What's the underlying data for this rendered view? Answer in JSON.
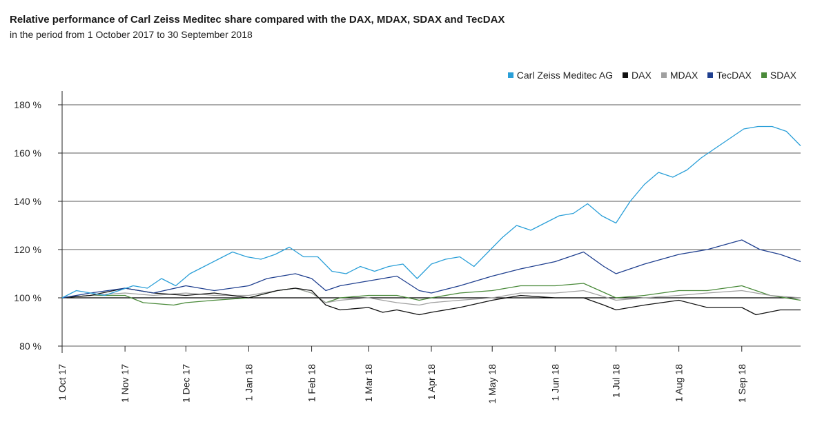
{
  "chart_data": {
    "type": "line",
    "title": "Relative performance of Carl Zeiss Meditec share compared with the DAX, MDAX, SDAX and TecDAX",
    "subtitle": "in the period from 1 October 2017 to 30 September 2018",
    "xlabel": "",
    "ylabel": "",
    "x_range": [
      "2017-10-01",
      "2018-09-30"
    ],
    "x_ticks": [
      {
        "date": "2017-10-01",
        "label": "1 Oct 17"
      },
      {
        "date": "2017-11-01",
        "label": "1 Nov 17"
      },
      {
        "date": "2017-12-01",
        "label": "1 Dec 17"
      },
      {
        "date": "2018-01-01",
        "label": "1 Jan 18"
      },
      {
        "date": "2018-02-01",
        "label": "1 Feb 18"
      },
      {
        "date": "2018-03-01",
        "label": "1 Mar 18"
      },
      {
        "date": "2018-04-01",
        "label": "1 Apr 18"
      },
      {
        "date": "2018-05-01",
        "label": "1 May 18"
      },
      {
        "date": "2018-06-01",
        "label": "1 Jun 18"
      },
      {
        "date": "2018-07-01",
        "label": "1 Jul 18"
      },
      {
        "date": "2018-08-01",
        "label": "1 Aug 18"
      },
      {
        "date": "2018-09-01",
        "label": "1 Sep 18"
      }
    ],
    "ylim": [
      80,
      180
    ],
    "y_ticks": [
      {
        "value": 80,
        "label": "80 %"
      },
      {
        "value": 100,
        "label": "100 %"
      },
      {
        "value": 120,
        "label": "120 %"
      },
      {
        "value": 140,
        "label": "140 %"
      },
      {
        "value": 160,
        "label": "160 %"
      },
      {
        "value": 180,
        "label": "180 %"
      }
    ],
    "grid": "horizontal",
    "legend_position": "top-right",
    "series": [
      {
        "name": "Carl Zeiss Meditec AG",
        "color": "#2a9fd8",
        "points": [
          [
            "2017-10-01",
            100
          ],
          [
            "2017-10-08",
            103
          ],
          [
            "2017-10-15",
            102
          ],
          [
            "2017-10-22",
            101
          ],
          [
            "2017-10-29",
            103
          ],
          [
            "2017-11-05",
            105
          ],
          [
            "2017-11-12",
            104
          ],
          [
            "2017-11-19",
            108
          ],
          [
            "2017-11-26",
            105
          ],
          [
            "2017-12-03",
            110
          ],
          [
            "2017-12-10",
            113
          ],
          [
            "2017-12-17",
            116
          ],
          [
            "2017-12-24",
            119
          ],
          [
            "2017-12-31",
            117
          ],
          [
            "2018-01-07",
            116
          ],
          [
            "2018-01-14",
            118
          ],
          [
            "2018-01-21",
            121
          ],
          [
            "2018-01-28",
            117
          ],
          [
            "2018-02-04",
            117
          ],
          [
            "2018-02-11",
            111
          ],
          [
            "2018-02-18",
            110
          ],
          [
            "2018-02-25",
            113
          ],
          [
            "2018-03-04",
            111
          ],
          [
            "2018-03-11",
            113
          ],
          [
            "2018-03-18",
            114
          ],
          [
            "2018-03-25",
            108
          ],
          [
            "2018-04-01",
            114
          ],
          [
            "2018-04-08",
            116
          ],
          [
            "2018-04-15",
            117
          ],
          [
            "2018-04-22",
            113
          ],
          [
            "2018-04-29",
            119
          ],
          [
            "2018-05-06",
            125
          ],
          [
            "2018-05-13",
            130
          ],
          [
            "2018-05-20",
            128
          ],
          [
            "2018-05-27",
            131
          ],
          [
            "2018-06-03",
            134
          ],
          [
            "2018-06-10",
            135
          ],
          [
            "2018-06-17",
            139
          ],
          [
            "2018-06-24",
            134
          ],
          [
            "2018-07-01",
            131
          ],
          [
            "2018-07-08",
            140
          ],
          [
            "2018-07-15",
            147
          ],
          [
            "2018-07-22",
            152
          ],
          [
            "2018-07-29",
            150
          ],
          [
            "2018-08-05",
            153
          ],
          [
            "2018-08-12",
            158
          ],
          [
            "2018-08-19",
            162
          ],
          [
            "2018-08-26",
            166
          ],
          [
            "2018-09-02",
            170
          ],
          [
            "2018-09-09",
            171
          ],
          [
            "2018-09-16",
            171
          ],
          [
            "2018-09-23",
            169
          ],
          [
            "2018-09-30",
            163
          ]
        ]
      },
      {
        "name": "DAX",
        "color": "#111111",
        "points": [
          [
            "2017-10-01",
            100
          ],
          [
            "2017-10-15",
            101
          ],
          [
            "2017-11-01",
            104
          ],
          [
            "2017-11-15",
            102
          ],
          [
            "2017-12-01",
            101
          ],
          [
            "2017-12-15",
            102
          ],
          [
            "2018-01-01",
            100
          ],
          [
            "2018-01-15",
            103
          ],
          [
            "2018-01-24",
            104
          ],
          [
            "2018-02-01",
            103
          ],
          [
            "2018-02-08",
            97
          ],
          [
            "2018-02-15",
            95
          ],
          [
            "2018-03-01",
            96
          ],
          [
            "2018-03-08",
            94
          ],
          [
            "2018-03-15",
            95
          ],
          [
            "2018-03-26",
            93
          ],
          [
            "2018-04-01",
            94
          ],
          [
            "2018-04-15",
            96
          ],
          [
            "2018-05-01",
            99
          ],
          [
            "2018-05-15",
            101
          ],
          [
            "2018-06-01",
            100
          ],
          [
            "2018-06-15",
            100
          ],
          [
            "2018-06-25",
            97
          ],
          [
            "2018-07-01",
            95
          ],
          [
            "2018-07-15",
            97
          ],
          [
            "2018-08-01",
            99
          ],
          [
            "2018-08-15",
            96
          ],
          [
            "2018-09-01",
            96
          ],
          [
            "2018-09-08",
            93
          ],
          [
            "2018-09-20",
            95
          ],
          [
            "2018-09-30",
            95
          ]
        ]
      },
      {
        "name": "MDAX",
        "color": "#a0a0a0",
        "points": [
          [
            "2017-10-01",
            100
          ],
          [
            "2017-10-15",
            101
          ],
          [
            "2017-11-01",
            102
          ],
          [
            "2017-11-15",
            101
          ],
          [
            "2017-12-01",
            102
          ],
          [
            "2017-12-15",
            101
          ],
          [
            "2018-01-01",
            101
          ],
          [
            "2018-01-15",
            103
          ],
          [
            "2018-01-24",
            104
          ],
          [
            "2018-02-01",
            102
          ],
          [
            "2018-02-08",
            98
          ],
          [
            "2018-02-15",
            99
          ],
          [
            "2018-03-01",
            100
          ],
          [
            "2018-03-15",
            98
          ],
          [
            "2018-03-26",
            97
          ],
          [
            "2018-04-01",
            98
          ],
          [
            "2018-04-15",
            99
          ],
          [
            "2018-05-01",
            100
          ],
          [
            "2018-05-15",
            102
          ],
          [
            "2018-06-01",
            102
          ],
          [
            "2018-06-15",
            103
          ],
          [
            "2018-07-01",
            99
          ],
          [
            "2018-07-15",
            100
          ],
          [
            "2018-08-01",
            101
          ],
          [
            "2018-08-15",
            102
          ],
          [
            "2018-09-01",
            103
          ],
          [
            "2018-09-15",
            101
          ],
          [
            "2018-09-30",
            100
          ]
        ]
      },
      {
        "name": "TecDAX",
        "color": "#1f3f8f",
        "points": [
          [
            "2017-10-01",
            100
          ],
          [
            "2017-10-15",
            102
          ],
          [
            "2017-11-01",
            104
          ],
          [
            "2017-11-15",
            102
          ],
          [
            "2017-12-01",
            105
          ],
          [
            "2017-12-15",
            103
          ],
          [
            "2018-01-01",
            105
          ],
          [
            "2018-01-10",
            108
          ],
          [
            "2018-01-24",
            110
          ],
          [
            "2018-02-01",
            108
          ],
          [
            "2018-02-08",
            103
          ],
          [
            "2018-02-15",
            105
          ],
          [
            "2018-03-01",
            107
          ],
          [
            "2018-03-15",
            109
          ],
          [
            "2018-03-26",
            103
          ],
          [
            "2018-04-01",
            102
          ],
          [
            "2018-04-15",
            105
          ],
          [
            "2018-05-01",
            109
          ],
          [
            "2018-05-15",
            112
          ],
          [
            "2018-06-01",
            115
          ],
          [
            "2018-06-15",
            119
          ],
          [
            "2018-06-25",
            113
          ],
          [
            "2018-07-01",
            110
          ],
          [
            "2018-07-15",
            114
          ],
          [
            "2018-08-01",
            118
          ],
          [
            "2018-08-15",
            120
          ],
          [
            "2018-09-01",
            124
          ],
          [
            "2018-09-10",
            120
          ],
          [
            "2018-09-20",
            118
          ],
          [
            "2018-09-30",
            115
          ]
        ]
      },
      {
        "name": "SDAX",
        "color": "#4a8a3a",
        "points": [
          [
            "2017-10-01",
            100
          ],
          [
            "2017-10-15",
            101
          ],
          [
            "2017-11-01",
            101
          ],
          [
            "2017-11-10",
            98
          ],
          [
            "2017-11-25",
            97
          ],
          [
            "2017-12-01",
            98
          ],
          [
            "2017-12-15",
            99
          ],
          [
            "2018-01-01",
            100
          ],
          [
            "2018-01-15",
            103
          ],
          [
            "2018-01-24",
            104
          ],
          [
            "2018-02-01",
            102
          ],
          [
            "2018-02-08",
            98
          ],
          [
            "2018-02-15",
            100
          ],
          [
            "2018-03-01",
            101
          ],
          [
            "2018-03-15",
            101
          ],
          [
            "2018-03-26",
            99
          ],
          [
            "2018-04-01",
            100
          ],
          [
            "2018-04-15",
            102
          ],
          [
            "2018-05-01",
            103
          ],
          [
            "2018-05-15",
            105
          ],
          [
            "2018-06-01",
            105
          ],
          [
            "2018-06-15",
            106
          ],
          [
            "2018-07-01",
            100
          ],
          [
            "2018-07-15",
            101
          ],
          [
            "2018-08-01",
            103
          ],
          [
            "2018-08-15",
            103
          ],
          [
            "2018-09-01",
            105
          ],
          [
            "2018-09-15",
            101
          ],
          [
            "2018-09-30",
            99
          ]
        ]
      }
    ]
  }
}
